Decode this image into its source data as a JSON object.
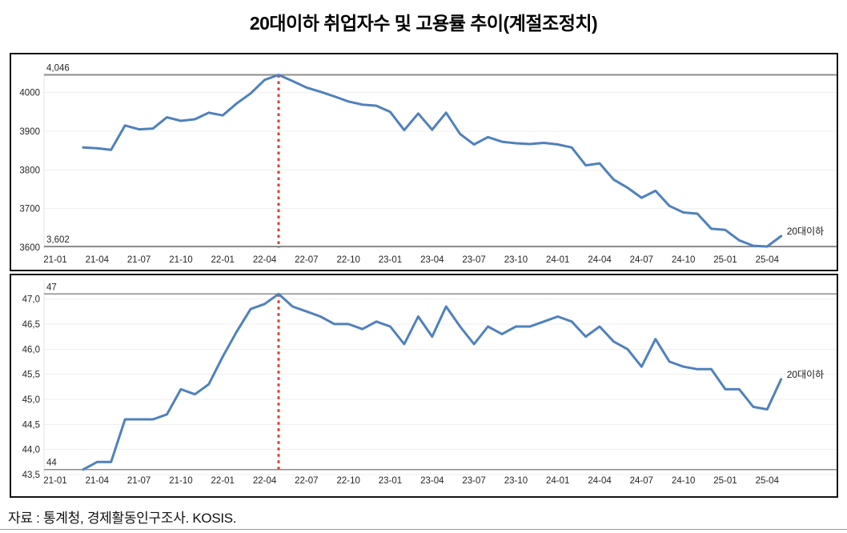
{
  "page": {
    "title": "20대이하 취업자수 및 고용률 추이(계절조정치)",
    "source": "자료 : 통계청, 경제활동인구조사. KOSIS."
  },
  "colors": {
    "line": "#4F81BD",
    "marker": "#E23C26",
    "ref_line": "#8C8C8C",
    "grid": "#EFEFEF",
    "axis": "#E3E3E3",
    "text": "#262626"
  },
  "chart_data": [
    {
      "type": "line",
      "name": "employment-count",
      "series_label": "20대이하",
      "legend_position": "right-of-line-end",
      "grid": true,
      "marker_month": "22-05",
      "x_ticks": [
        "21-01",
        "21-04",
        "21-07",
        "21-10",
        "22-01",
        "22-04",
        "22-07",
        "22-10",
        "23-01",
        "23-04",
        "23-07",
        "23-10",
        "24-01",
        "24-04",
        "24-07",
        "24-10",
        "25-01",
        "25-04"
      ],
      "y_ticks": [
        {
          "v": 4000,
          "t": "4000"
        },
        {
          "v": 3900,
          "t": "3900"
        },
        {
          "v": 3800,
          "t": "3800"
        },
        {
          "v": 3700,
          "t": "3700"
        },
        {
          "v": 3600,
          "t": "3600"
        }
      ],
      "ylim": [
        3544,
        4103
      ],
      "annotations": [
        {
          "v": 4046,
          "t": "4,046"
        },
        {
          "v": 3602,
          "t": "3,602"
        }
      ],
      "months": [
        "21-03",
        "21-04",
        "21-05",
        "21-06",
        "21-07",
        "21-08",
        "21-09",
        "21-10",
        "21-11",
        "21-12",
        "22-01",
        "22-02",
        "22-03",
        "22-04",
        "22-05",
        "22-06",
        "22-07",
        "22-08",
        "22-09",
        "22-10",
        "22-11",
        "22-12",
        "23-01",
        "23-02",
        "23-03",
        "23-04",
        "23-05",
        "23-06",
        "23-07",
        "23-08",
        "23-09",
        "23-10",
        "23-11",
        "23-12",
        "24-01",
        "24-02",
        "24-03",
        "24-04",
        "24-05",
        "24-06",
        "24-07",
        "24-08",
        "24-09",
        "24-10",
        "24-11",
        "24-12",
        "25-01",
        "25-02",
        "25-03",
        "25-04",
        "25-05"
      ],
      "values": [
        3858,
        3856,
        3852,
        3915,
        3905,
        3907,
        3936,
        3927,
        3931,
        3948,
        3941,
        3972,
        3998,
        4033,
        4046,
        4030,
        4013,
        4002,
        3990,
        3977,
        3969,
        3966,
        3950,
        3903,
        3946,
        3904,
        3948,
        3893,
        3866,
        3885,
        3873,
        3869,
        3867,
        3870,
        3866,
        3858,
        3812,
        3817,
        3775,
        3754,
        3728,
        3746,
        3707,
        3690,
        3687,
        3648,
        3645,
        3618,
        3604,
        3602,
        3629
      ]
    },
    {
      "type": "line",
      "name": "employment-rate",
      "series_label": "20대이하",
      "legend_position": "right-of-line-end",
      "grid": true,
      "marker_month": "22-05",
      "x_ticks": [
        "21-01",
        "21-04",
        "21-07",
        "21-10",
        "22-01",
        "22-04",
        "22-07",
        "22-10",
        "23-01",
        "23-04",
        "23-07",
        "23-10",
        "24-01",
        "24-04",
        "24-07",
        "24-10",
        "25-01",
        "25-04"
      ],
      "y_ticks": [
        {
          "v": 47.0,
          "t": "47,0"
        },
        {
          "v": 46.5,
          "t": "46,5"
        },
        {
          "v": 46.0,
          "t": "46,0"
        },
        {
          "v": 45.5,
          "t": "45,5"
        },
        {
          "v": 45.0,
          "t": "45,0"
        },
        {
          "v": 44.5,
          "t": "44,5"
        },
        {
          "v": 44.0,
          "t": "44,0"
        },
        {
          "v": 43.5,
          "t": "43,5"
        }
      ],
      "ylim": [
        43.1,
        47.5
      ],
      "annotations": [
        {
          "v": 47.1,
          "t": "47"
        },
        {
          "v": 43.6,
          "t": "44"
        }
      ],
      "months": [
        "21-03",
        "21-04",
        "21-05",
        "21-06",
        "21-07",
        "21-08",
        "21-09",
        "21-10",
        "21-11",
        "21-12",
        "22-01",
        "22-02",
        "22-03",
        "22-04",
        "22-05",
        "22-06",
        "22-07",
        "22-08",
        "22-09",
        "22-10",
        "22-11",
        "22-12",
        "23-01",
        "23-02",
        "23-03",
        "23-04",
        "23-05",
        "23-06",
        "23-07",
        "23-08",
        "23-09",
        "23-10",
        "23-11",
        "23-12",
        "24-01",
        "24-02",
        "24-03",
        "24-04",
        "24-05",
        "24-06",
        "24-07",
        "24-08",
        "24-09",
        "24-10",
        "24-11",
        "24-12",
        "25-01",
        "25-02",
        "25-03",
        "25-04",
        "25-05"
      ],
      "values": [
        43.6,
        43.75,
        43.75,
        44.6,
        44.6,
        44.6,
        44.7,
        45.2,
        45.1,
        45.3,
        45.85,
        46.35,
        46.8,
        46.9,
        47.1,
        46.85,
        46.75,
        46.65,
        46.5,
        46.5,
        46.4,
        46.55,
        46.45,
        46.1,
        46.65,
        46.25,
        46.85,
        46.45,
        46.1,
        46.45,
        46.3,
        46.45,
        46.45,
        46.55,
        46.65,
        46.55,
        46.25,
        46.45,
        46.15,
        46.0,
        45.65,
        46.2,
        45.75,
        45.65,
        45.6,
        45.6,
        45.2,
        45.2,
        44.85,
        44.8,
        45.4
      ]
    }
  ]
}
